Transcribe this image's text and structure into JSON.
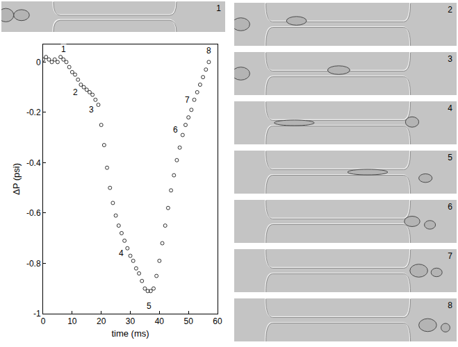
{
  "chart_data": {
    "type": "scatter",
    "xlabel": "time (ms)",
    "ylabel": "ΔP (psi)",
    "x": [
      0,
      1,
      2,
      3,
      4,
      5,
      6,
      7,
      8,
      9,
      10,
      11,
      12,
      13,
      14,
      15,
      16,
      17,
      18,
      19,
      20,
      21,
      22,
      23,
      24,
      25,
      26,
      27,
      28,
      29,
      30,
      31,
      32,
      33,
      34,
      35,
      36,
      37,
      38,
      39,
      40,
      41,
      42,
      43,
      44,
      45,
      46,
      47,
      48,
      49,
      50,
      51,
      52,
      53,
      54,
      55,
      56,
      57
    ],
    "values": [
      0.01,
      0.02,
      0.01,
      0,
      0.01,
      0,
      0.02,
      0.01,
      0,
      -0.02,
      -0.04,
      -0.05,
      -0.07,
      -0.09,
      -0.1,
      -0.11,
      -0.12,
      -0.13,
      -0.15,
      -0.17,
      -0.25,
      -0.33,
      -0.42,
      -0.5,
      -0.56,
      -0.61,
      -0.65,
      -0.68,
      -0.71,
      -0.74,
      -0.77,
      -0.79,
      -0.82,
      -0.84,
      -0.87,
      -0.9,
      -0.91,
      -0.91,
      -0.9,
      -0.85,
      -0.79,
      -0.72,
      -0.65,
      -0.58,
      -0.51,
      -0.45,
      -0.39,
      -0.34,
      -0.29,
      -0.25,
      -0.22,
      -0.19,
      -0.15,
      -0.12,
      -0.09,
      -0.06,
      -0.03,
      0
    ],
    "color": "#000000",
    "marker": "circle-open",
    "xlim": [
      0,
      60
    ],
    "xticks": [
      0,
      10,
      20,
      30,
      40,
      50,
      60
    ],
    "ylim": [
      -1,
      0.07
    ],
    "yticks": [
      -1,
      -0.8,
      -0.6,
      -0.4,
      -0.2,
      0
    ],
    "grid": false,
    "annotations": [
      {
        "text": "1",
        "x": 7,
        "y": 0.05
      },
      {
        "text": "2",
        "x": 11,
        "y": -0.12
      },
      {
        "text": "3",
        "x": 16.5,
        "y": -0.19
      },
      {
        "text": "4",
        "x": 27,
        "y": -0.76
      },
      {
        "text": "5",
        "x": 36.5,
        "y": -0.97
      },
      {
        "text": "6",
        "x": 45.5,
        "y": -0.27
      },
      {
        "text": "7",
        "x": 49.5,
        "y": -0.15
      },
      {
        "text": "8",
        "x": 57,
        "y": 0.045
      }
    ]
  },
  "panels": [
    {
      "label": "1"
    },
    {
      "label": "2"
    },
    {
      "label": "3"
    },
    {
      "label": "4"
    },
    {
      "label": "5"
    },
    {
      "label": "6"
    },
    {
      "label": "7"
    },
    {
      "label": "8"
    }
  ]
}
